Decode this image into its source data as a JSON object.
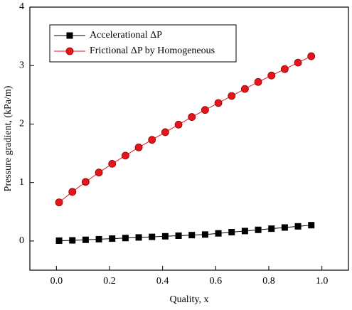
{
  "chart_data": {
    "type": "line",
    "x_label": "Quality, x",
    "y_label": "Pressure gradient, (kPa/m)",
    "x": [
      0.01,
      0.06,
      0.11,
      0.16,
      0.21,
      0.26,
      0.31,
      0.36,
      0.41,
      0.46,
      0.51,
      0.56,
      0.61,
      0.66,
      0.71,
      0.76,
      0.81,
      0.86,
      0.91,
      0.96
    ],
    "series": [
      {
        "name": "Accelerational ΔP",
        "color": "#000000",
        "marker": "square",
        "values": [
          0.005,
          0.01,
          0.02,
          0.03,
          0.04,
          0.05,
          0.06,
          0.07,
          0.08,
          0.09,
          0.1,
          0.11,
          0.13,
          0.15,
          0.17,
          0.19,
          0.21,
          0.23,
          0.25,
          0.27
        ]
      },
      {
        "name": "Frictional ΔP by Homogeneous",
        "color": "#e8141c",
        "marker": "circle",
        "values": [
          0.66,
          0.84,
          1.01,
          1.17,
          1.32,
          1.46,
          1.6,
          1.73,
          1.86,
          1.99,
          2.12,
          2.24,
          2.36,
          2.48,
          2.6,
          2.72,
          2.83,
          2.94,
          3.05,
          3.16
        ]
      }
    ],
    "xlim": [
      -0.1,
      1.1
    ],
    "ylim": [
      -0.5,
      4
    ],
    "xticks": [
      {
        "value": 0,
        "label": "0.0"
      },
      0.2,
      0.4,
      0.6,
      0.8,
      {
        "value": 1,
        "label": "1.0"
      }
    ],
    "yticks": [
      0,
      1,
      2,
      3,
      4
    ],
    "legend": "top-left"
  }
}
